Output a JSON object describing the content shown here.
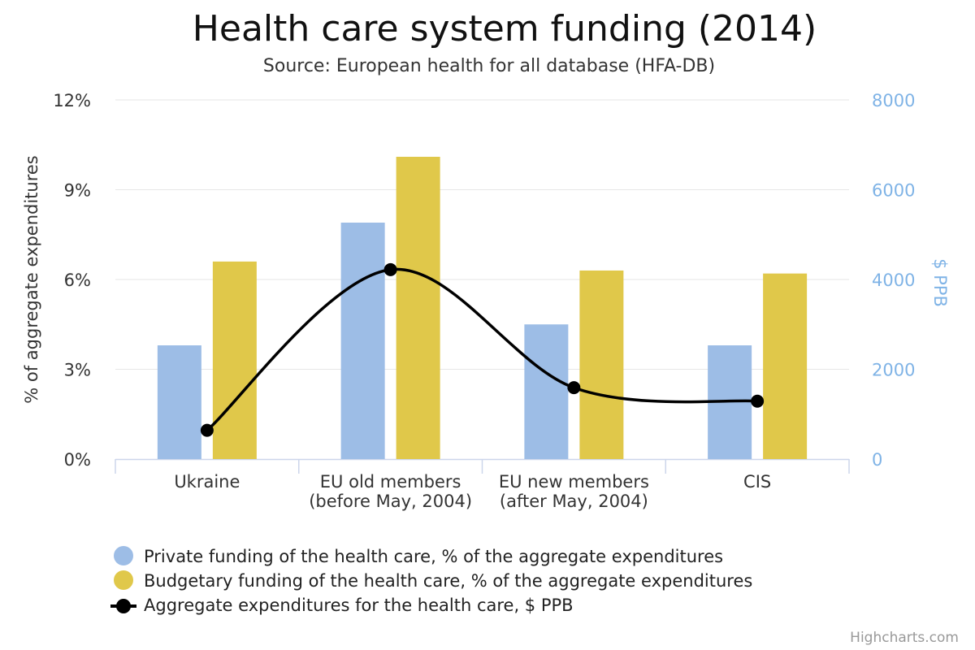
{
  "chart_data": {
    "type": "bar",
    "title": "Health care system funding (2014)",
    "subtitle": "Source: European health for all database (HFA-DB)",
    "categories": [
      [
        "Ukraine"
      ],
      [
        "EU old members",
        "(before May, 2004)"
      ],
      [
        "EU new members",
        "(after May, 2004)"
      ],
      [
        "CIS"
      ]
    ],
    "y_left": {
      "label": "% of aggregate expenditures",
      "min": 0,
      "max": 12,
      "ticks": [
        "0%",
        "3%",
        "6%",
        "9%",
        "12%"
      ]
    },
    "y_right": {
      "label": "$ PPB",
      "min": 0,
      "max": 8000,
      "ticks": [
        "0",
        "2000",
        "4000",
        "6000",
        "8000"
      ]
    },
    "series": [
      {
        "name": "Private funding of the health care, % of the aggregate expenditures",
        "kind": "column",
        "axis": "left",
        "color": "#9dbde6",
        "values": [
          3.8,
          7.9,
          4.5,
          3.8
        ]
      },
      {
        "name": "Budgetary funding of the health care, % of the aggregate expenditures",
        "kind": "column",
        "axis": "left",
        "color": "#e0c84a",
        "values": [
          6.6,
          10.1,
          6.3,
          6.2
        ]
      },
      {
        "name": "Aggregate expenditures for the health care, $ PPB",
        "kind": "spline",
        "axis": "right",
        "color": "#000000",
        "values": [
          640,
          4220,
          1590,
          1290
        ]
      }
    ],
    "grid": true,
    "legend_position": "bottom-left",
    "credits": "Highcharts.com"
  }
}
